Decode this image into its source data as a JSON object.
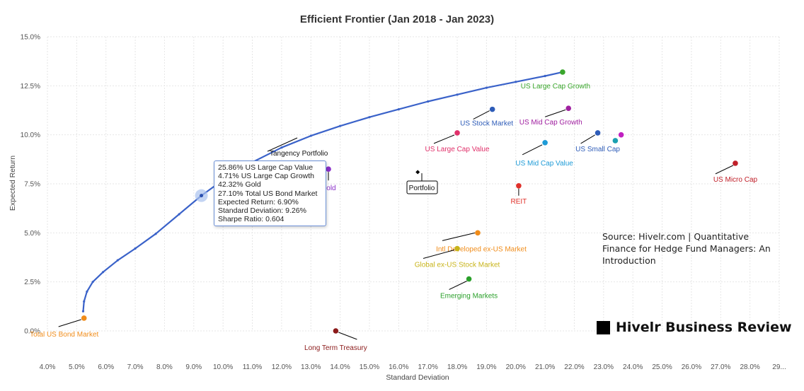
{
  "chart_data": {
    "type": "scatter",
    "title": "Efficient Frontier (Jan 2018 - Jan 2023)",
    "xlabel": "Standard Deviation",
    "ylabel": "Expected Return",
    "xlim": [
      4.0,
      29.0
    ],
    "ylim": [
      0.0,
      15.0
    ],
    "x_ticks": [
      "4.0%",
      "5.0%",
      "6.0%",
      "7.0%",
      "8.0%",
      "9.0%",
      "10.0%",
      "11.0%",
      "12.0%",
      "13.0%",
      "14.0%",
      "15.0%",
      "16.0%",
      "17.0%",
      "18.0%",
      "19.0%",
      "20.0%",
      "21.0%",
      "22.0%",
      "23.0%",
      "24.0%",
      "25.0%",
      "26.0%",
      "27.0%",
      "28.0%",
      "29..."
    ],
    "y_ticks": [
      "0.0%",
      "2.5%",
      "5.0%",
      "7.5%",
      "10.0%",
      "12.5%",
      "15.0%"
    ],
    "grid": true,
    "frontier": {
      "color": "#3a62c9",
      "x": [
        5.22,
        5.25,
        5.35,
        5.55,
        5.9,
        6.4,
        7.0,
        7.7,
        8.5,
        9.26,
        10.0,
        11.0,
        12.0,
        13.0,
        14.0,
        15.0,
        16.0,
        17.0,
        18.0,
        19.0,
        20.0,
        21.0,
        21.6
      ],
      "y": [
        1.0,
        1.5,
        2.0,
        2.5,
        3.0,
        3.6,
        4.2,
        4.95,
        5.95,
        6.9,
        7.7,
        8.6,
        9.35,
        9.95,
        10.45,
        10.9,
        11.3,
        11.7,
        12.05,
        12.4,
        12.7,
        13.0,
        13.2
      ]
    },
    "assets": [
      {
        "name": "US Large Cap Growth",
        "x": 21.6,
        "y": 13.2,
        "color": "#3aa62c"
      },
      {
        "name": "US Stock Market",
        "x": 19.2,
        "y": 11.3,
        "color": "#2e5cb8"
      },
      {
        "name": "US Mid Cap Growth",
        "x": 21.8,
        "y": 11.35,
        "color": "#a020a0"
      },
      {
        "name": "US Large Cap Value",
        "x": 18.0,
        "y": 10.1,
        "color": "#e0306a"
      },
      {
        "name": "US Small Cap",
        "x": 22.8,
        "y": 10.1,
        "color": "#2e5cb8"
      },
      {
        "name": "US Mid Cap Value",
        "x": 21.0,
        "y": 9.6,
        "color": "#1e9bd7"
      },
      {
        "name": "Gold",
        "x": 13.6,
        "y": 8.25,
        "color": "#8a2fc9"
      },
      {
        "name": "REIT",
        "x": 20.1,
        "y": 7.4,
        "color": "#e0302a"
      },
      {
        "name": "US Micro Cap",
        "x": 27.5,
        "y": 8.55,
        "color": "#c0202a"
      },
      {
        "name": "Intl Developed ex-US Market",
        "x": 18.7,
        "y": 5.0,
        "color": "#f08c1a"
      },
      {
        "name": "Global ex-US Stock Market",
        "x": 18.0,
        "y": 4.2,
        "color": "#c8b41a"
      },
      {
        "name": "Emerging Markets",
        "x": 18.4,
        "y": 2.65,
        "color": "#2aa02a"
      },
      {
        "name": "Total US Bond Market",
        "x": 5.25,
        "y": 0.65,
        "color": "#f08c1a"
      },
      {
        "name": "Long Term Treasury",
        "x": 13.85,
        "y": 0.0,
        "color": "#8b1a1a"
      }
    ],
    "unlabeled_assets": [
      {
        "x": 23.4,
        "y": 9.7,
        "color": "#1aa0b0"
      },
      {
        "x": 23.6,
        "y": 10.0,
        "color": "#c020c0"
      }
    ],
    "annotations": {
      "tangency_label": "Tangency Portfolio",
      "portfolio_label": "Portfolio",
      "portfolio_point": {
        "x": 16.65,
        "y": 8.1
      },
      "highlight_point": {
        "x": 9.26,
        "y": 6.9
      }
    },
    "tooltip": [
      "25.86% US Large Cap Value",
      "4.71% US Large Cap Growth",
      "42.32% Gold",
      "27.10% Total US Bond Market",
      "Expected Return: 6.90%",
      "Standard Deviation: 9.26%",
      "Sharpe Ratio: 0.604"
    ]
  },
  "source_note": "Source: Hivelr.com | Quantitative Finance for Hedge Fund Managers: An Introduction",
  "brand": "Hivelr Business Review"
}
